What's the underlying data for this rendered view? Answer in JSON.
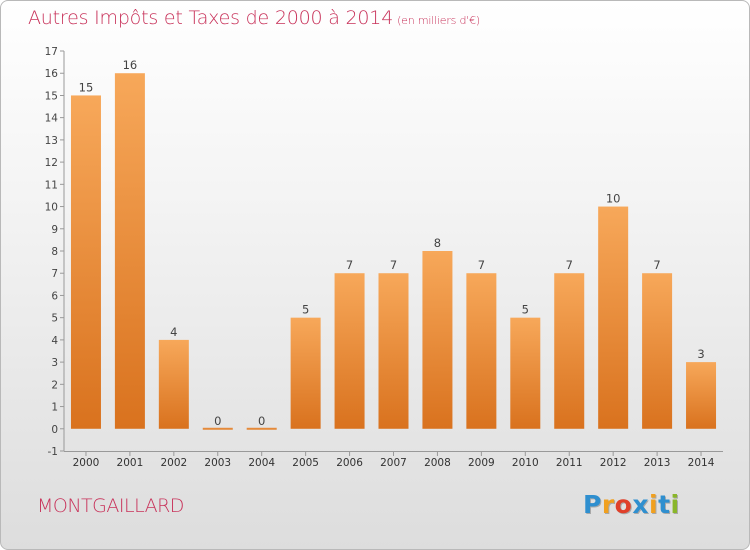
{
  "header": {
    "title": "Autres Impôts et Taxes de 2000 à 2014",
    "subtitle": "(en milliers d'€)"
  },
  "footer": {
    "place": "MONTGAILLARD",
    "logo_letters": [
      "P",
      "r",
      "o",
      "x",
      "i",
      "t",
      "i"
    ],
    "logo_colors": [
      "#2f8fcf",
      "#f0a020",
      "#e0402a",
      "#2f8fcf",
      "#f0a020",
      "#2f8fcf",
      "#8ab62a"
    ]
  },
  "colors": {
    "accent": "#c8325a",
    "bar_top": "#f7a85a",
    "bar_bottom": "#d9721e"
  },
  "chart_data": {
    "type": "bar",
    "title": "Autres Impôts et Taxes de 2000 à 2014",
    "subtitle": "(en milliers d'€)",
    "categories": [
      "2000",
      "2001",
      "2002",
      "2003",
      "2004",
      "2005",
      "2006",
      "2007",
      "2008",
      "2009",
      "2010",
      "2011",
      "2012",
      "2013",
      "2014"
    ],
    "values": [
      15,
      16,
      4,
      0,
      0,
      5,
      7,
      7,
      8,
      7,
      5,
      7,
      10,
      7,
      3
    ],
    "ylim": [
      -1,
      17
    ],
    "yticks": [
      -1,
      0,
      1,
      2,
      3,
      4,
      5,
      6,
      7,
      8,
      9,
      10,
      11,
      12,
      13,
      14,
      15,
      16,
      17
    ],
    "grid": false,
    "legend": "none"
  }
}
